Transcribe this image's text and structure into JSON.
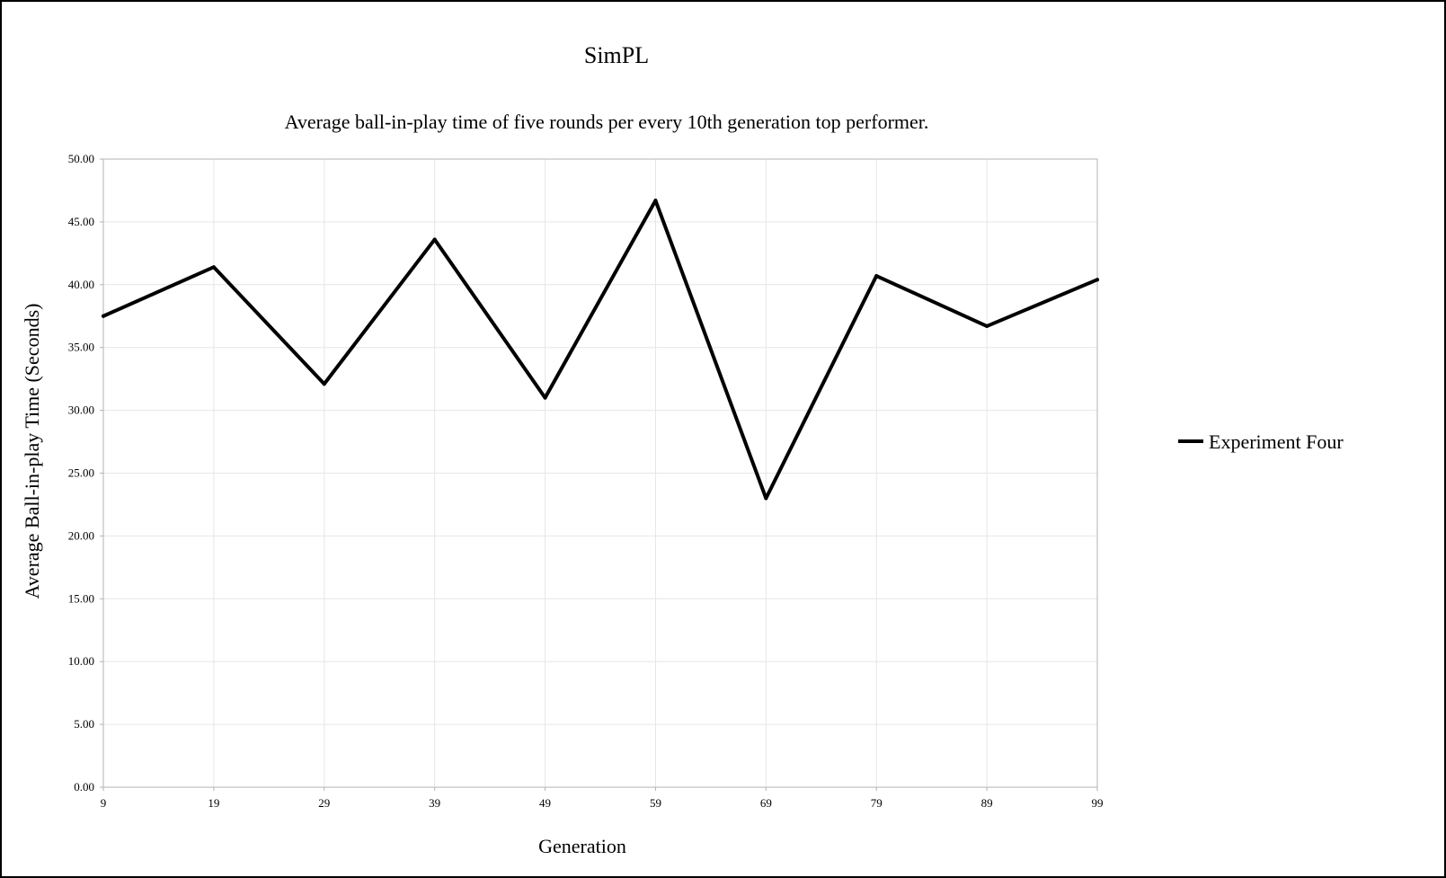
{
  "chart_data": {
    "type": "line",
    "title": "SimPL",
    "subtitle": "Average ball-in-play time of five rounds per every 10th generation top performer.",
    "xlabel": "Generation",
    "ylabel": "Average Ball-in-play Time (Seconds)",
    "categories": [
      "9",
      "19",
      "29",
      "39",
      "49",
      "59",
      "69",
      "79",
      "89",
      "99"
    ],
    "ylim": [
      0,
      50
    ],
    "yticks": [
      "0.00",
      "5.00",
      "10.00",
      "15.00",
      "20.00",
      "25.00",
      "30.00",
      "35.00",
      "40.00",
      "45.00",
      "50.00"
    ],
    "grid": true,
    "legend_position": "right",
    "series": [
      {
        "name": "Experiment Four",
        "color": "#000000",
        "values": [
          37.5,
          41.4,
          32.1,
          43.6,
          31.0,
          46.7,
          23.0,
          40.7,
          36.7,
          40.4
        ]
      }
    ]
  }
}
